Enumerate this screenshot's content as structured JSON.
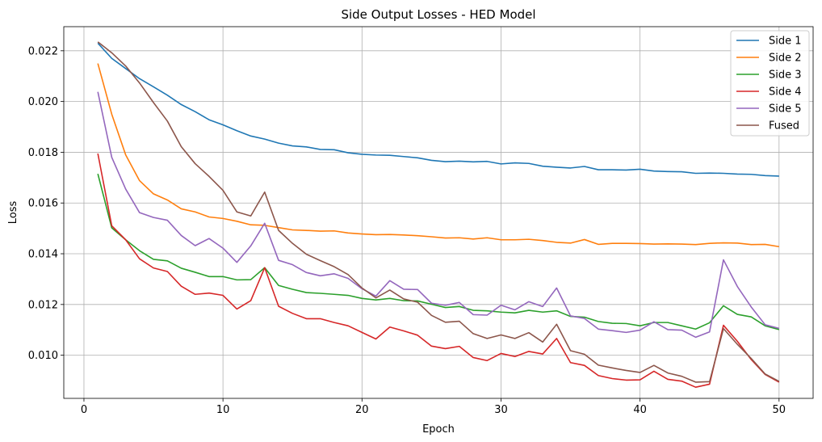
{
  "chart_data": {
    "type": "line",
    "title": "Side Output Losses - HED Model",
    "xlabel": "Epoch",
    "ylabel": "Loss",
    "xlim": [
      -1.45,
      52.45
    ],
    "ylim": [
      0.0083,
      0.02295
    ],
    "xticks": [
      0,
      10,
      20,
      30,
      40,
      50
    ],
    "yticks": [
      0.01,
      0.012,
      0.014,
      0.016,
      0.018,
      0.02,
      0.022
    ],
    "xtick_labels": [
      "0",
      "10",
      "20",
      "30",
      "40",
      "50"
    ],
    "ytick_labels": [
      "0.010",
      "0.012",
      "0.014",
      "0.016",
      "0.018",
      "0.020",
      "0.022"
    ],
    "grid": true,
    "legend_position": "top-right",
    "x": [
      1,
      2,
      3,
      4,
      5,
      6,
      7,
      8,
      9,
      10,
      11,
      12,
      13,
      14,
      15,
      16,
      17,
      18,
      19,
      20,
      21,
      22,
      23,
      24,
      25,
      26,
      27,
      28,
      29,
      30,
      31,
      32,
      33,
      34,
      35,
      36,
      37,
      38,
      39,
      40,
      41,
      42,
      43,
      44,
      45,
      46,
      47,
      48,
      49,
      50
    ],
    "series": [
      {
        "name": "Side 1",
        "color": "#1f77b4",
        "values": [
          0.0223,
          0.0217,
          0.0213,
          0.0209,
          0.02058,
          0.02025,
          0.01988,
          0.0196,
          0.01928,
          0.01908,
          0.01885,
          0.01864,
          0.01852,
          0.01836,
          0.01825,
          0.01821,
          0.01811,
          0.0181,
          0.01798,
          0.01792,
          0.01789,
          0.01788,
          0.01783,
          0.01778,
          0.01768,
          0.01763,
          0.01765,
          0.01762,
          0.01764,
          0.01754,
          0.01758,
          0.01756,
          0.01745,
          0.01741,
          0.01738,
          0.01744,
          0.01731,
          0.01731,
          0.0173,
          0.01733,
          0.01726,
          0.01724,
          0.01723,
          0.01717,
          0.01718,
          0.01717,
          0.01714,
          0.01713,
          0.01708,
          0.01706
        ]
      },
      {
        "name": "Side 2",
        "color": "#ff7f0e",
        "values": [
          0.0215,
          0.0195,
          0.0179,
          0.01688,
          0.01636,
          0.01612,
          0.01577,
          0.01565,
          0.01545,
          0.01539,
          0.01528,
          0.01514,
          0.01512,
          0.01503,
          0.01494,
          0.01492,
          0.01489,
          0.0149,
          0.01482,
          0.01478,
          0.01475,
          0.01476,
          0.01474,
          0.01471,
          0.01467,
          0.01462,
          0.01463,
          0.01458,
          0.01463,
          0.01455,
          0.01455,
          0.01457,
          0.01452,
          0.01445,
          0.01442,
          0.01456,
          0.01437,
          0.01441,
          0.01441,
          0.0144,
          0.01438,
          0.01439,
          0.01438,
          0.01436,
          0.01441,
          0.01443,
          0.01442,
          0.01436,
          0.01437,
          0.01428
        ]
      },
      {
        "name": "Side 3",
        "color": "#2ca02c",
        "values": [
          0.01715,
          0.01502,
          0.01455,
          0.01412,
          0.01378,
          0.01372,
          0.01343,
          0.01327,
          0.0131,
          0.0131,
          0.01297,
          0.01298,
          0.01345,
          0.01275,
          0.0126,
          0.01247,
          0.01244,
          0.0124,
          0.01236,
          0.01224,
          0.01218,
          0.01224,
          0.01215,
          0.01214,
          0.01201,
          0.01188,
          0.01192,
          0.01177,
          0.01175,
          0.0117,
          0.01167,
          0.01177,
          0.0117,
          0.01175,
          0.01153,
          0.0115,
          0.01133,
          0.01126,
          0.01125,
          0.01116,
          0.01129,
          0.01129,
          0.01116,
          0.01103,
          0.01128,
          0.01195,
          0.01161,
          0.01151,
          0.01116,
          0.01101
        ]
      },
      {
        "name": "Side 4",
        "color": "#d62728",
        "values": [
          0.01795,
          0.0151,
          0.01455,
          0.0138,
          0.01344,
          0.0133,
          0.01272,
          0.0124,
          0.01245,
          0.01236,
          0.01182,
          0.01215,
          0.01345,
          0.01193,
          0.01165,
          0.01144,
          0.01144,
          0.01129,
          0.01116,
          0.0109,
          0.01064,
          0.01111,
          0.01096,
          0.01079,
          0.01036,
          0.01026,
          0.01035,
          0.00991,
          0.00979,
          0.01007,
          0.00995,
          0.01015,
          0.01005,
          0.01066,
          0.00971,
          0.0096,
          0.0092,
          0.00908,
          0.00902,
          0.00903,
          0.00937,
          0.00905,
          0.00898,
          0.00874,
          0.00886,
          0.01118,
          0.01055,
          0.00983,
          0.00924,
          0.00894
        ]
      },
      {
        "name": "Side 5",
        "color": "#9467bd",
        "values": [
          0.02038,
          0.0178,
          0.01655,
          0.01562,
          0.01543,
          0.01532,
          0.01472,
          0.01432,
          0.0146,
          0.01422,
          0.01366,
          0.01431,
          0.0152,
          0.01374,
          0.01357,
          0.01326,
          0.01313,
          0.01321,
          0.01303,
          0.01262,
          0.01233,
          0.01294,
          0.0126,
          0.01259,
          0.01205,
          0.01197,
          0.01208,
          0.0116,
          0.01158,
          0.01197,
          0.01179,
          0.01211,
          0.01192,
          0.01265,
          0.01155,
          0.01145,
          0.01103,
          0.01097,
          0.0109,
          0.01099,
          0.01132,
          0.01101,
          0.01099,
          0.01071,
          0.01092,
          0.01376,
          0.01271,
          0.0119,
          0.0112,
          0.01106
        ]
      },
      {
        "name": "Fused",
        "color": "#8c564b",
        "values": [
          0.02235,
          0.02192,
          0.0214,
          0.02073,
          0.01996,
          0.01923,
          0.01822,
          0.01755,
          0.01705,
          0.0165,
          0.01565,
          0.01549,
          0.01643,
          0.01492,
          0.01441,
          0.01398,
          0.01373,
          0.01349,
          0.01318,
          0.01265,
          0.01226,
          0.01257,
          0.01222,
          0.01209,
          0.01157,
          0.0113,
          0.01134,
          0.01085,
          0.01066,
          0.0108,
          0.01066,
          0.01089,
          0.01052,
          0.01122,
          0.01018,
          0.01004,
          0.00961,
          0.0095,
          0.0094,
          0.00932,
          0.0096,
          0.0093,
          0.00917,
          0.00894,
          0.00896,
          0.01105,
          0.01043,
          0.00987,
          0.00926,
          0.00897
        ]
      }
    ]
  }
}
